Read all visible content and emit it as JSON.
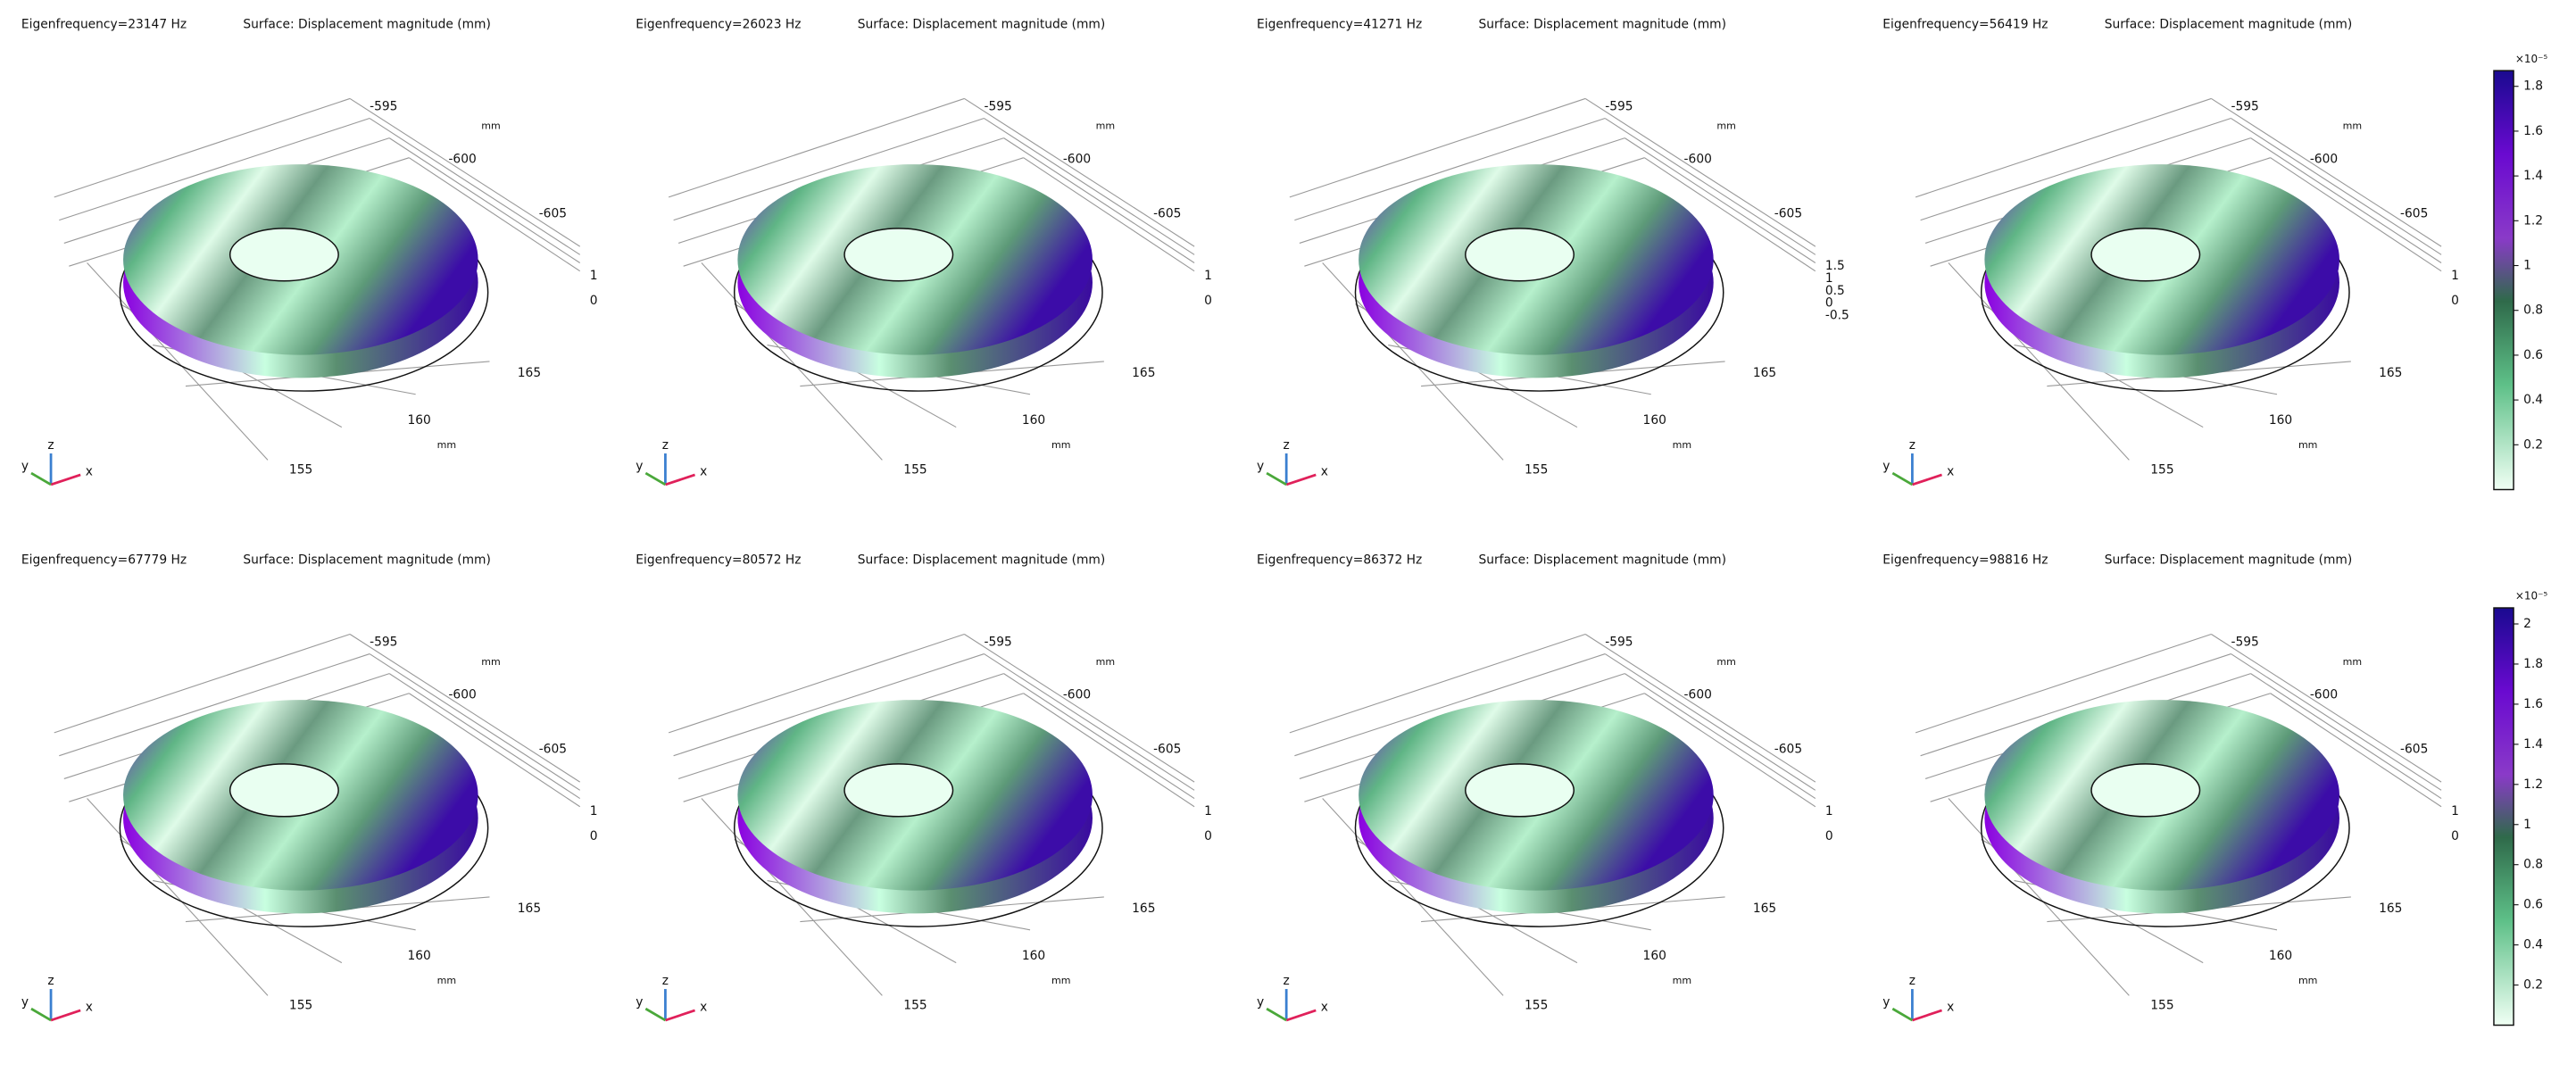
{
  "plot_label": "Surface: Displacement magnitude (mm)",
  "triad": {
    "x": "x",
    "y": "y",
    "z": "z"
  },
  "panels": [
    {
      "eigenfrequency": "Eigenfrequency=23147 Hz",
      "y_ticks": [
        "-595",
        "-600",
        "-605"
      ],
      "x_ticks": [
        "165",
        "160",
        "155"
      ],
      "z_ticks": [
        "1",
        "0"
      ],
      "unit": "mm"
    },
    {
      "eigenfrequency": "Eigenfrequency=26023 Hz",
      "y_ticks": [
        "-595",
        "-600",
        "-605"
      ],
      "x_ticks": [
        "165",
        "160",
        "155"
      ],
      "z_ticks": [
        "1",
        "0"
      ],
      "unit": "mm"
    },
    {
      "eigenfrequency": "Eigenfrequency=41271 Hz",
      "y_ticks": [
        "-595",
        "-600",
        "-605"
      ],
      "x_ticks": [
        "165",
        "160",
        "155"
      ],
      "z_ticks": [
        "1.5",
        "1",
        "0.5",
        "0",
        "-0.5"
      ],
      "unit": "mm"
    },
    {
      "eigenfrequency": "Eigenfrequency=56419 Hz",
      "y_ticks": [
        "-595",
        "-600",
        "-605"
      ],
      "x_ticks": [
        "165",
        "160",
        "155"
      ],
      "z_ticks": [
        "1",
        "0"
      ],
      "unit": "mm"
    },
    {
      "eigenfrequency": "Eigenfrequency=67779 Hz",
      "y_ticks": [
        "-595",
        "-600",
        "-605"
      ],
      "x_ticks": [
        "165",
        "160",
        "155"
      ],
      "z_ticks": [
        "1",
        "0"
      ],
      "unit": "mm"
    },
    {
      "eigenfrequency": "Eigenfrequency=80572 Hz",
      "y_ticks": [
        "-595",
        "-600",
        "-605"
      ],
      "x_ticks": [
        "165",
        "160",
        "155"
      ],
      "z_ticks": [
        "1",
        "0"
      ],
      "unit": "mm"
    },
    {
      "eigenfrequency": "Eigenfrequency=86372 Hz",
      "y_ticks": [
        "-595",
        "-600",
        "-605"
      ],
      "x_ticks": [
        "165",
        "160",
        "155"
      ],
      "z_ticks": [
        "1",
        "0"
      ],
      "unit": "mm"
    },
    {
      "eigenfrequency": "Eigenfrequency=98816 Hz",
      "y_ticks": [
        "-595",
        "-600",
        "-605"
      ],
      "x_ticks": [
        "165",
        "160",
        "155"
      ],
      "z_ticks": [
        "1",
        "0"
      ],
      "unit": "mm"
    }
  ],
  "colorbars": [
    {
      "exponent_label": "×10⁻⁵",
      "range": [
        0,
        1.87
      ],
      "ticks": [
        0.2,
        0.4,
        0.6,
        0.8,
        1,
        1.2,
        1.4,
        1.6,
        1.8
      ]
    },
    {
      "exponent_label": "×10⁻⁵",
      "range": [
        0,
        2.08
      ],
      "ticks": [
        0.2,
        0.4,
        0.6,
        0.8,
        1,
        1.2,
        1.4,
        1.6,
        1.8,
        2
      ]
    }
  ]
}
